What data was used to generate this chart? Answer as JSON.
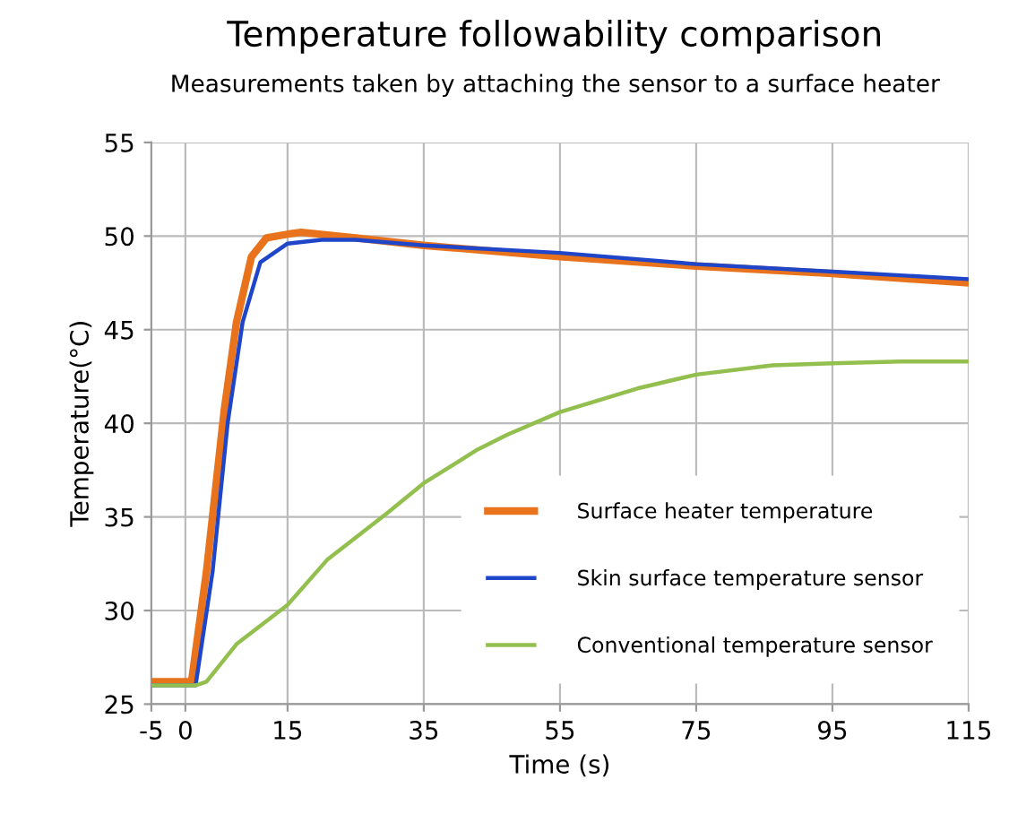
{
  "chart_data": {
    "type": "line",
    "title": "Temperature followability comparison",
    "subtitle": "Measurements taken by attaching the sensor to a surface heater",
    "xlabel": "Time (s)",
    "ylabel": "Temperature(°C)",
    "xlim": [
      -5,
      115
    ],
    "xticks": [
      -5,
      0,
      15,
      35,
      55,
      75,
      95,
      115
    ],
    "ylim": [
      25,
      55
    ],
    "yticks": [
      25,
      30,
      35,
      40,
      45,
      50,
      55
    ],
    "grid": true,
    "legend": "bottom right",
    "marker": "none",
    "line_style": "solid",
    "series": [
      {
        "name": "Surface heater temperature",
        "color": "#e8731c",
        "x": [
          -5,
          0.9,
          3.1,
          5.7,
          7.5,
          9.7,
          11.9,
          15,
          17,
          25,
          35,
          55,
          75,
          95,
          115
        ],
        "values": [
          26.2,
          26.2,
          32.1,
          40.7,
          45.4,
          48.9,
          49.9,
          50.1,
          50.2,
          49.9,
          49.5,
          48.9,
          48.4,
          48.0,
          47.5
        ]
      },
      {
        "name": "Skin surface temperature sensor",
        "color": "#1f45c8",
        "x": [
          -5,
          1.5,
          4,
          6.2,
          8.4,
          11,
          15,
          20,
          25,
          35,
          55,
          75,
          95,
          115
        ],
        "values": [
          26.0,
          26.0,
          32.1,
          40.0,
          45.4,
          48.6,
          49.6,
          49.8,
          49.8,
          49.5,
          49.1,
          48.5,
          48.1,
          47.7
        ]
      },
      {
        "name": "Conventional temperature sensor",
        "color": "#92bf4e",
        "x": [
          -5,
          1.5,
          3.1,
          7.5,
          15,
          20.8,
          29.6,
          35,
          42.9,
          47.3,
          55,
          66.8,
          75,
          86.2,
          95,
          105,
          115
        ],
        "values": [
          26.0,
          26.0,
          26.2,
          28.2,
          30.3,
          32.7,
          35.2,
          36.8,
          38.6,
          39.4,
          40.6,
          41.9,
          42.6,
          43.1,
          43.2,
          43.3,
          43.3
        ]
      }
    ]
  }
}
